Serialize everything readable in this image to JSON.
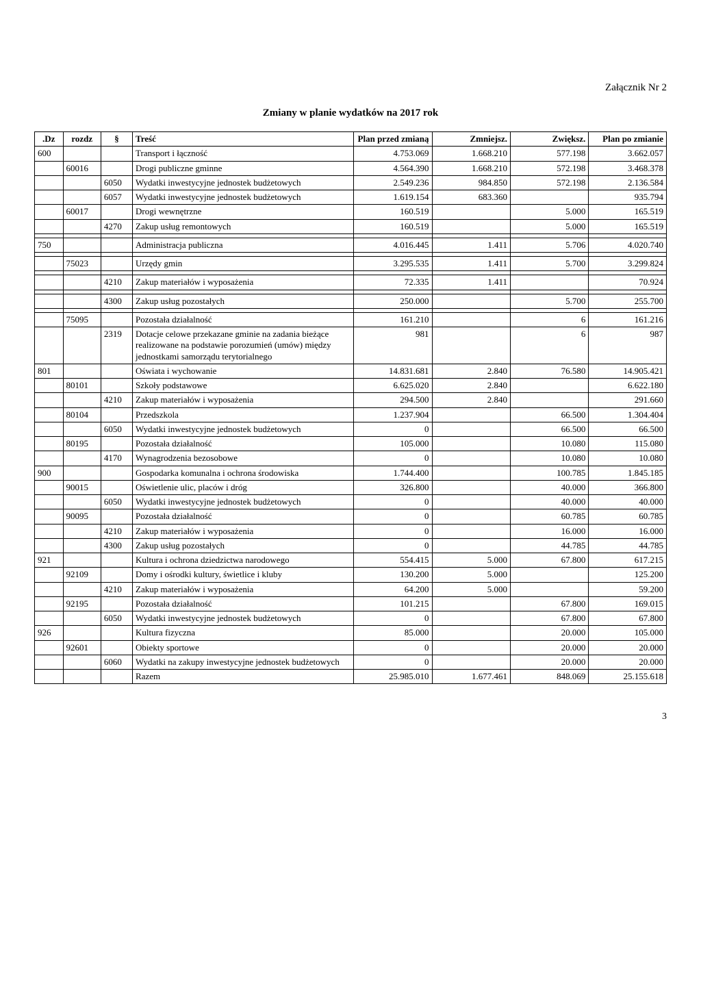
{
  "header": {
    "attachment": "Załącznik Nr 2",
    "title": "Zmiany w planie wydatków na 2017 rok"
  },
  "table": {
    "columns": {
      "dz": ".Dz",
      "rozdz": "rozdz",
      "par": "§",
      "tresc": "Treść",
      "plan_przed": "Plan przed zmianą",
      "zmniejsz": "Zmniejsz.",
      "zwieksz": "Zwiększ.",
      "plan_po": "Plan po zmianie"
    },
    "rows": [
      {
        "dz": "600",
        "rozdz": "",
        "par": "",
        "tresc": "Transport i łączność",
        "pp": "4.753.069",
        "zmn": "1.668.210",
        "zwi": "577.198",
        "ppo": "3.662.057"
      },
      {
        "dz": "",
        "rozdz": "60016",
        "par": "",
        "tresc": "Drogi publiczne gminne",
        "pp": "4.564.390",
        "zmn": "1.668.210",
        "zwi": "572.198",
        "ppo": "3.468.378"
      },
      {
        "dz": "",
        "rozdz": "",
        "par": "6050",
        "tresc": "Wydatki inwestycyjne jednostek budżetowych",
        "pp": "2.549.236",
        "zmn": "984.850",
        "zwi": "572.198",
        "ppo": "2.136.584"
      },
      {
        "dz": "",
        "rozdz": "",
        "par": "6057",
        "tresc": "Wydatki inwestycyjne jednostek budżetowych",
        "pp": "1.619.154",
        "zmn": "683.360",
        "zwi": "",
        "ppo": "935.794"
      },
      {
        "dz": "",
        "rozdz": "60017",
        "par": "",
        "tresc": "Drogi wewnętrzne",
        "pp": "160.519",
        "zmn": "",
        "zwi": "5.000",
        "ppo": "165.519"
      },
      {
        "dz": "",
        "rozdz": "",
        "par": "4270",
        "tresc": "Zakup usług remontowych",
        "pp": "160.519",
        "zmn": "",
        "zwi": "5.000",
        "ppo": "165.519"
      },
      {
        "dz": "750",
        "rozdz": "",
        "par": "",
        "tresc": "Administracja publiczna",
        "pp": "4.016.445",
        "zmn": "1.411",
        "zwi": "5.706",
        "ppo": "4.020.740"
      },
      {
        "dz": "",
        "rozdz": "75023",
        "par": "",
        "tresc": "Urzędy gmin",
        "pp": "3.295.535",
        "zmn": "1.411",
        "zwi": "5.700",
        "ppo": "3.299.824"
      },
      {
        "dz": "",
        "rozdz": "",
        "par": "4210",
        "tresc": "Zakup materiałów i wyposażenia",
        "pp": "72.335",
        "zmn": "1.411",
        "zwi": "",
        "ppo": "70.924"
      },
      {
        "dz": "",
        "rozdz": "",
        "par": "4300",
        "tresc": "Zakup usług pozostałych",
        "pp": "250.000",
        "zmn": "",
        "zwi": "5.700",
        "ppo": "255.700"
      },
      {
        "dz": "",
        "rozdz": "75095",
        "par": "",
        "tresc": "Pozostała działalność",
        "pp": "161.210",
        "zmn": "",
        "zwi": "6",
        "ppo": "161.216"
      },
      {
        "dz": "",
        "rozdz": "",
        "par": "2319",
        "tresc": "Dotacje celowe przekazane gminie na zadania bieżące realizowane na podstawie porozumień (umów) między jednostkami samorządu terytorialnego",
        "pp": "981",
        "zmn": "",
        "zwi": "6",
        "ppo": "987"
      },
      {
        "dz": "801",
        "rozdz": "",
        "par": "",
        "tresc": "Oświata i wychowanie",
        "pp": "14.831.681",
        "zmn": "2.840",
        "zwi": "76.580",
        "ppo": "14.905.421"
      },
      {
        "dz": "",
        "rozdz": "80101",
        "par": "",
        "tresc": "Szkoły podstawowe",
        "pp": "6.625.020",
        "zmn": "2.840",
        "zwi": "",
        "ppo": "6.622.180"
      },
      {
        "dz": "",
        "rozdz": "",
        "par": "4210",
        "tresc": "Zakup materiałów i wyposażenia",
        "pp": "294.500",
        "zmn": "2.840",
        "zwi": "",
        "ppo": "291.660"
      },
      {
        "dz": "",
        "rozdz": "80104",
        "par": "",
        "tresc": "Przedszkola",
        "pp": "1.237.904",
        "zmn": "",
        "zwi": "66.500",
        "ppo": "1.304.404"
      },
      {
        "dz": "",
        "rozdz": "",
        "par": "6050",
        "tresc": "Wydatki inwestycyjne jednostek budżetowych",
        "pp": "0",
        "zmn": "",
        "zwi": "66.500",
        "ppo": "66.500"
      },
      {
        "dz": "",
        "rozdz": "80195",
        "par": "",
        "tresc": "Pozostała działalność",
        "pp": "105.000",
        "zmn": "",
        "zwi": "10.080",
        "ppo": "115.080"
      },
      {
        "dz": "",
        "rozdz": "",
        "par": "4170",
        "tresc": "Wynagrodzenia bezosobowe",
        "pp": "0",
        "zmn": "",
        "zwi": "10.080",
        "ppo": "10.080"
      },
      {
        "dz": "900",
        "rozdz": "",
        "par": "",
        "tresc": "Gospodarka komunalna i ochrona środowiska",
        "pp": "1.744.400",
        "zmn": "",
        "zwi": "100.785",
        "ppo": "1.845.185"
      },
      {
        "dz": "",
        "rozdz": "90015",
        "par": "",
        "tresc": "Oświetlenie ulic, placów i dróg",
        "pp": "326.800",
        "zmn": "",
        "zwi": "40.000",
        "ppo": "366.800"
      },
      {
        "dz": "",
        "rozdz": "",
        "par": "6050",
        "tresc": "Wydatki inwestycyjne jednostek budżetowych",
        "pp": "0",
        "zmn": "",
        "zwi": "40.000",
        "ppo": "40.000"
      },
      {
        "dz": "",
        "rozdz": "90095",
        "par": "",
        "tresc": "Pozostała działalność",
        "pp": "0",
        "zmn": "",
        "zwi": "60.785",
        "ppo": "60.785"
      },
      {
        "dz": "",
        "rozdz": "",
        "par": "4210",
        "tresc": "Zakup materiałów i wyposażenia",
        "pp": "0",
        "zmn": "",
        "zwi": "16.000",
        "ppo": "16.000"
      },
      {
        "dz": "",
        "rozdz": "",
        "par": "4300",
        "tresc": "Zakup usług pozostałych",
        "pp": "0",
        "zmn": "",
        "zwi": "44.785",
        "ppo": "44.785"
      },
      {
        "dz": "921",
        "rozdz": "",
        "par": "",
        "tresc": "Kultura i ochrona dziedzictwa narodowego",
        "pp": "554.415",
        "zmn": "5.000",
        "zwi": "67.800",
        "ppo": "617.215"
      },
      {
        "dz": "",
        "rozdz": "92109",
        "par": "",
        "tresc": "Domy i ośrodki kultury, świetlice i kluby",
        "pp": "130.200",
        "zmn": "5.000",
        "zwi": "",
        "ppo": "125.200"
      },
      {
        "dz": "",
        "rozdz": "",
        "par": "4210",
        "tresc": "Zakup materiałów i wyposażenia",
        "pp": "64.200",
        "zmn": "5.000",
        "zwi": "",
        "ppo": "59.200"
      },
      {
        "dz": "",
        "rozdz": "92195",
        "par": "",
        "tresc": "Pozostała działalność",
        "pp": "101.215",
        "zmn": "",
        "zwi": "67.800",
        "ppo": "169.015"
      },
      {
        "dz": "",
        "rozdz": "",
        "par": "6050",
        "tresc": "Wydatki inwestycyjne jednostek budżetowych",
        "pp": "0",
        "zmn": "",
        "zwi": "67.800",
        "ppo": "67.800"
      },
      {
        "dz": "926",
        "rozdz": "",
        "par": "",
        "tresc": "Kultura fizyczna",
        "pp": "85.000",
        "zmn": "",
        "zwi": "20.000",
        "ppo": "105.000"
      },
      {
        "dz": "",
        "rozdz": "92601",
        "par": "",
        "tresc": "Obiekty sportowe",
        "pp": "0",
        "zmn": "",
        "zwi": "20.000",
        "ppo": "20.000"
      },
      {
        "dz": "",
        "rozdz": "",
        "par": "6060",
        "tresc": "Wydatki na zakupy inwestycyjne jednostek budżetowych",
        "pp": "0",
        "zmn": "",
        "zwi": "20.000",
        "ppo": "20.000"
      },
      {
        "dz": "",
        "rozdz": "",
        "par": "",
        "tresc": "Razem",
        "pp": "25.985.010",
        "zmn": "1.677.461",
        "zwi": "848.069",
        "ppo": "25.155.618"
      }
    ]
  },
  "footer": {
    "page_num": "3"
  },
  "spacer_after": [
    5,
    6,
    7,
    8,
    9
  ]
}
